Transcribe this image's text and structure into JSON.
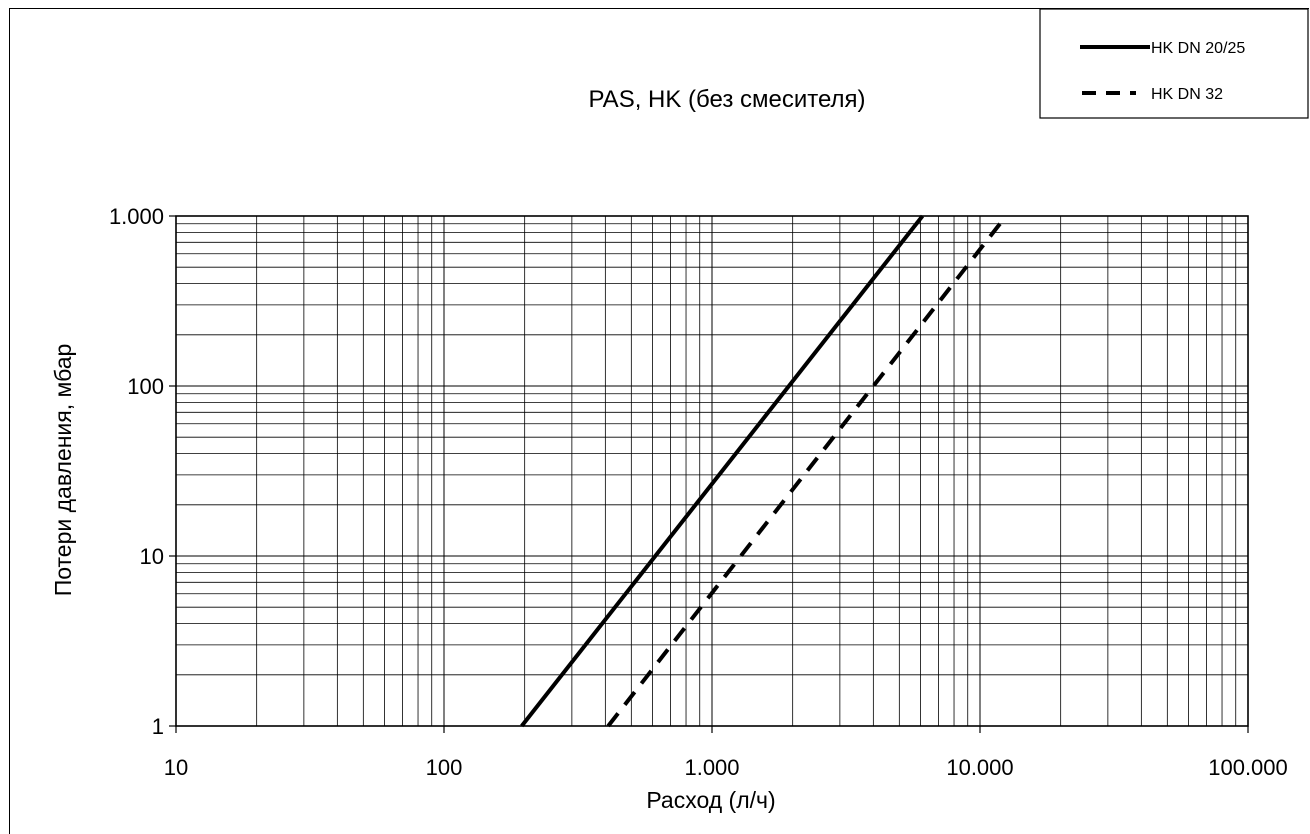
{
  "chart_data": {
    "type": "line",
    "title": "PAS, HK (без смесителя)",
    "xlabel": "Расход (л/ч)",
    "ylabel": "Потери давления, мбар",
    "x_scale": "log",
    "y_scale": "log",
    "xlim": [
      10,
      100000
    ],
    "ylim": [
      1,
      1000
    ],
    "x_ticks": [
      10,
      100,
      1000,
      10000,
      100000
    ],
    "x_tick_labels": [
      "10",
      "100",
      "1.000",
      "10.000",
      "100.000"
    ],
    "y_ticks": [
      1,
      10,
      100,
      1000
    ],
    "y_tick_labels": [
      "1",
      "10",
      "100",
      "1.000"
    ],
    "grid": true,
    "legend_position": "top-right",
    "series": [
      {
        "name": "HK DN 20/25",
        "style": "solid",
        "x": [
          195,
          6100
        ],
        "y": [
          1,
          1000
        ]
      },
      {
        "name": "HK DN 32",
        "style": "dashed",
        "x": [
          410,
          12500
        ],
        "y": [
          1,
          1000
        ]
      }
    ]
  }
}
